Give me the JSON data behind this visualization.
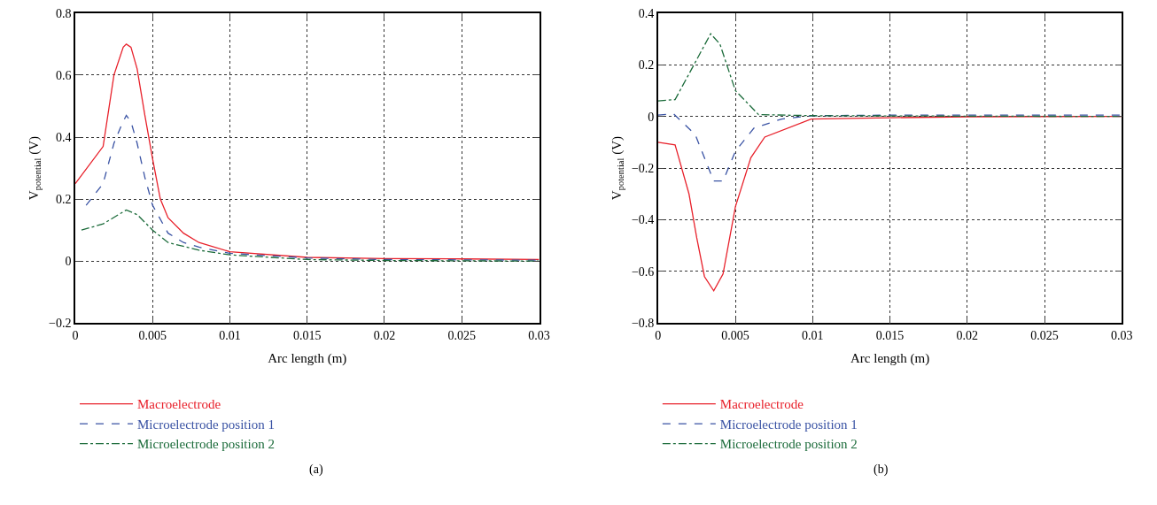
{
  "chart_data": [
    {
      "type": "line",
      "xlabel": "Arc length (m)",
      "ylabel": "V$_{potential}$ (V)",
      "xlim": [
        0,
        0.03
      ],
      "xticks": [
        0,
        0.005,
        0.01,
        0.015,
        0.02,
        0.025,
        0.03
      ],
      "ylim": [
        -0.2,
        0.8
      ],
      "yticks": [
        {
          "value": -0.2,
          "label": "−0.2"
        },
        0,
        0.2,
        0.4,
        0.6,
        0.8
      ],
      "grid": true,
      "legend": "bottom left",
      "annotations": [
        "(a)"
      ],
      "series": [
        {
          "name": "Macroelectrode",
          "color": "#e8212b",
          "line_style": "solid",
          "x": [
            0,
            0.0018,
            0.0025,
            0.0031,
            0.0033,
            0.0036,
            0.004,
            0.0045,
            0.005,
            0.0055,
            0.006,
            0.007,
            0.008,
            0.01,
            0.015,
            0.02,
            0.025,
            0.03
          ],
          "values": [
            0.25,
            0.37,
            0.6,
            0.69,
            0.7,
            0.69,
            0.62,
            0.47,
            0.33,
            0.2,
            0.14,
            0.09,
            0.06,
            0.03,
            0.012,
            0.008,
            0.007,
            0.005
          ]
        },
        {
          "name": "Microelectrode position 1",
          "color": "#3a53a4",
          "line_style": "dashed",
          "x": [
            0.0007,
            0.0018,
            0.0025,
            0.003,
            0.0033,
            0.0036,
            0.004,
            0.0045,
            0.005,
            0.006,
            0.007,
            0.008,
            0.01,
            0.015,
            0.02,
            0.025,
            0.03
          ],
          "values": [
            0.18,
            0.25,
            0.38,
            0.44,
            0.47,
            0.45,
            0.38,
            0.27,
            0.18,
            0.09,
            0.06,
            0.045,
            0.025,
            0.01,
            0.005,
            0.004,
            0.003
          ]
        },
        {
          "name": "Microelectrode position 2",
          "color": "#1b6b3a",
          "line_style": "dashdot",
          "x": [
            0.0004,
            0.0018,
            0.0033,
            0.004,
            0.005,
            0.006,
            0.008,
            0.01,
            0.015,
            0.02,
            0.025,
            0.03
          ],
          "values": [
            0.1,
            0.12,
            0.165,
            0.15,
            0.1,
            0.06,
            0.035,
            0.02,
            0.005,
            0.002,
            0.001,
            0
          ]
        }
      ]
    },
    {
      "type": "line",
      "xlabel": "Arc length (m)",
      "ylabel": "V$_{potential}$ (V)",
      "xlim": [
        0,
        0.03
      ],
      "xticks": [
        0,
        0.005,
        0.01,
        0.015,
        0.02,
        0.025,
        0.03
      ],
      "ylim": [
        -0.8,
        0.4
      ],
      "yticks": [
        {
          "value": -0.8,
          "label": "−0.8"
        },
        {
          "value": -0.6,
          "label": "−0.6"
        },
        {
          "value": -0.4,
          "label": "−0.4"
        },
        {
          "value": -0.2,
          "label": "−0.2"
        },
        0,
        0.2,
        0.4
      ],
      "grid": true,
      "legend": "bottom left",
      "annotations": [
        "(b)"
      ],
      "series": [
        {
          "name": "Macroelectrode",
          "color": "#e8212b",
          "line_style": "solid",
          "x": [
            0,
            0.0011,
            0.002,
            0.0025,
            0.003,
            0.0036,
            0.0042,
            0.005,
            0.006,
            0.0069,
            0.0099,
            0.015,
            0.02,
            0.03
          ],
          "values": [
            -0.1,
            -0.11,
            -0.3,
            -0.47,
            -0.62,
            -0.675,
            -0.61,
            -0.35,
            -0.16,
            -0.08,
            -0.01,
            -0.005,
            -0.002,
            0
          ]
        },
        {
          "name": "Microelectrode position 1",
          "color": "#3a53a4",
          "line_style": "dashed",
          "x": [
            0,
            0.001,
            0.0024,
            0.0036,
            0.0042,
            0.005,
            0.0062,
            0.008,
            0.01,
            0.015,
            0.02,
            0.03
          ],
          "values": [
            0.005,
            0.01,
            -0.07,
            -0.25,
            -0.25,
            -0.135,
            -0.045,
            -0.01,
            0.003,
            0.005,
            0.005,
            0.005
          ]
        },
        {
          "name": "Microelectrode position 2",
          "color": "#1b6b3a",
          "line_style": "dashdot",
          "x": [
            0,
            0.0011,
            0.0025,
            0.0034,
            0.004,
            0.005,
            0.0065,
            0.01,
            0.02,
            0.03
          ],
          "values": [
            0.06,
            0.065,
            0.22,
            0.32,
            0.28,
            0.1,
            0.007,
            0.003,
            0.001,
            0
          ]
        }
      ]
    }
  ]
}
